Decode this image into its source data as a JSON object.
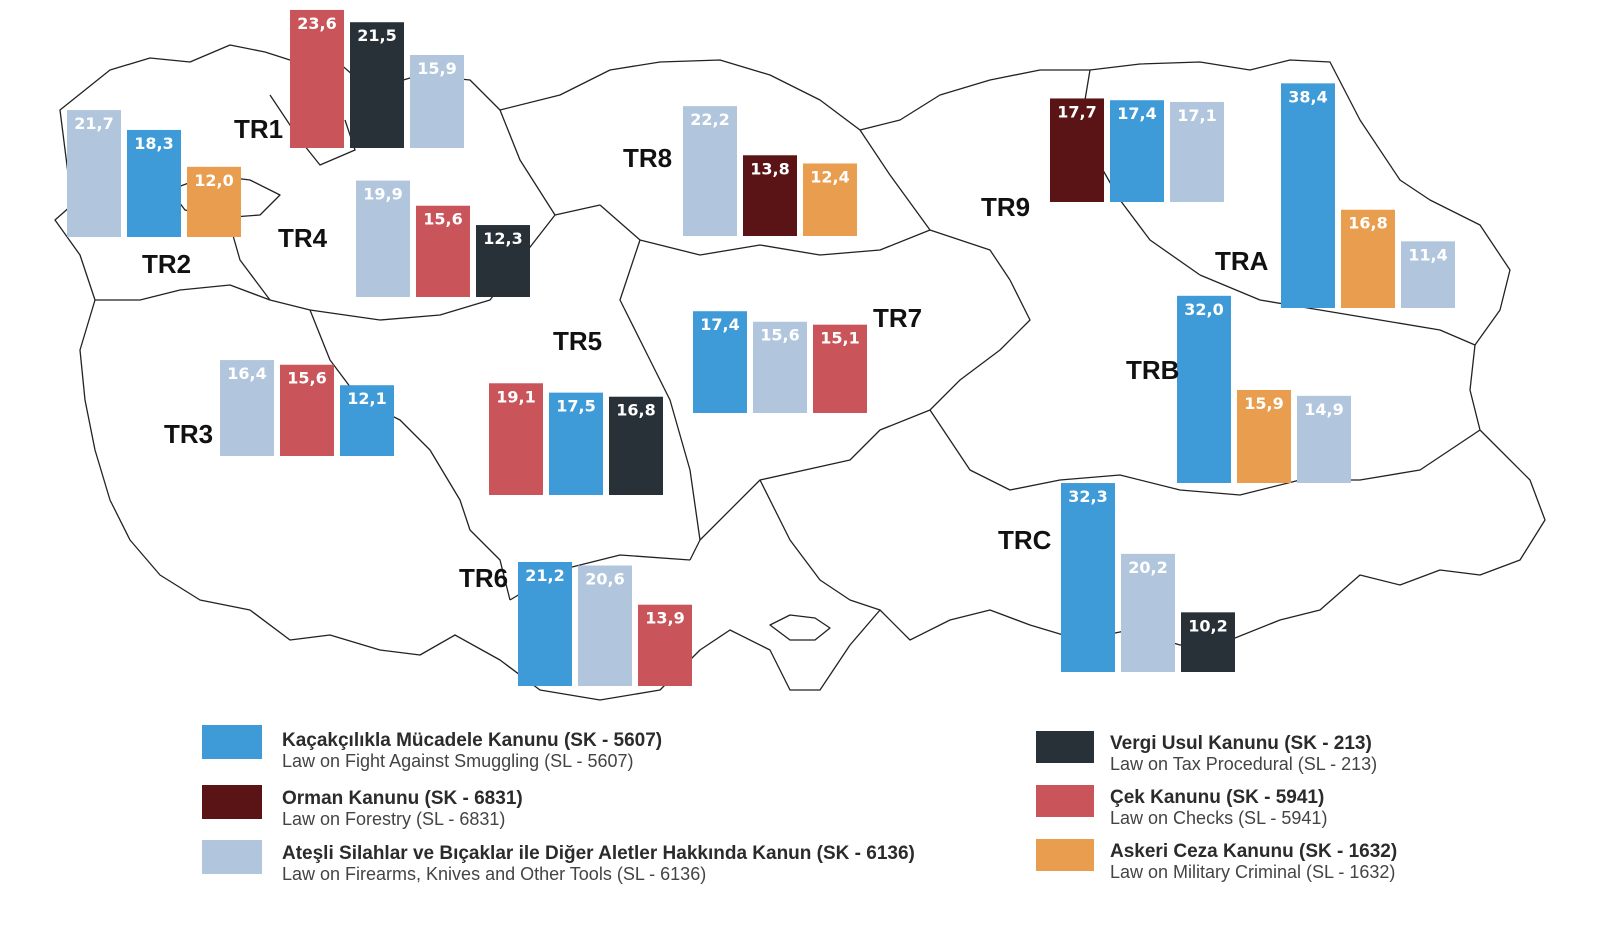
{
  "legend": [
    {
      "key": "smuggling",
      "color": "#3f9bd8",
      "title": "Kaçakçılıkla Mücadele Kanunu (SK - 5607)",
      "subtitle": "Law on Fight Against Smuggling (SL - 5607)"
    },
    {
      "key": "forestry",
      "color": "#5a1416",
      "title": "Orman Kanunu (SK - 6831)",
      "subtitle": "Law on Forestry (SL - 6831)"
    },
    {
      "key": "firearms",
      "color": "#b1c6dd",
      "title": "Ateşli Silahlar ve Bıçaklar ile Diğer Aletler Hakkında Kanun (SK - 6136)",
      "subtitle": "Law on Firearms, Knives and Other Tools (SL - 6136)"
    },
    {
      "key": "tax",
      "color": "#283038",
      "title": "Vergi Usul Kanunu (SK - 213)",
      "subtitle": "Law on Tax Procedural (SL - 213)"
    },
    {
      "key": "checks",
      "color": "#c9555a",
      "title": "Çek Kanunu (SK - 5941)",
      "subtitle": "Law on Checks (SL - 5941)"
    },
    {
      "key": "military",
      "color": "#e99d4e",
      "title": "Askeri Ceza Kanunu (SK - 1632)",
      "subtitle": "Law on Military Criminal (SL - 1632)"
    }
  ],
  "chart_data": {
    "type": "bar",
    "title": "",
    "unit": "%",
    "regions": [
      {
        "code": "TR1",
        "bars": [
          {
            "law": "checks",
            "value": 23.6,
            "label": "23,6"
          },
          {
            "law": "tax",
            "value": 21.5,
            "label": "21,5"
          },
          {
            "law": "firearms",
            "value": 15.9,
            "label": "15,9"
          }
        ]
      },
      {
        "code": "TR2",
        "bars": [
          {
            "law": "firearms",
            "value": 21.7,
            "label": "21,7"
          },
          {
            "law": "smuggling",
            "value": 18.3,
            "label": "18,3"
          },
          {
            "law": "military",
            "value": 12.0,
            "label": "12,0"
          }
        ]
      },
      {
        "code": "TR3",
        "bars": [
          {
            "law": "firearms",
            "value": 16.4,
            "label": "16,4"
          },
          {
            "law": "checks",
            "value": 15.6,
            "label": "15,6"
          },
          {
            "law": "smuggling",
            "value": 12.1,
            "label": "12,1"
          }
        ]
      },
      {
        "code": "TR4",
        "bars": [
          {
            "law": "firearms",
            "value": 19.9,
            "label": "19,9"
          },
          {
            "law": "checks",
            "value": 15.6,
            "label": "15,6"
          },
          {
            "law": "tax",
            "value": 12.3,
            "label": "12,3"
          }
        ]
      },
      {
        "code": "TR5",
        "bars": [
          {
            "law": "checks",
            "value": 19.1,
            "label": "19,1"
          },
          {
            "law": "smuggling",
            "value": 17.5,
            "label": "17,5"
          },
          {
            "law": "tax",
            "value": 16.8,
            "label": "16,8"
          }
        ]
      },
      {
        "code": "TR6",
        "bars": [
          {
            "law": "smuggling",
            "value": 21.2,
            "label": "21,2"
          },
          {
            "law": "firearms",
            "value": 20.6,
            "label": "20,6"
          },
          {
            "law": "checks",
            "value": 13.9,
            "label": "13,9"
          }
        ]
      },
      {
        "code": "TR7",
        "bars": [
          {
            "law": "smuggling",
            "value": 17.4,
            "label": "17,4"
          },
          {
            "law": "firearms",
            "value": 15.6,
            "label": "15,6"
          },
          {
            "law": "checks",
            "value": 15.1,
            "label": "15,1"
          }
        ]
      },
      {
        "code": "TR8",
        "bars": [
          {
            "law": "firearms",
            "value": 22.2,
            "label": "22,2"
          },
          {
            "law": "forestry",
            "value": 13.8,
            "label": "13,8"
          },
          {
            "law": "military",
            "value": 12.4,
            "label": "12,4"
          }
        ]
      },
      {
        "code": "TR9",
        "bars": [
          {
            "law": "forestry",
            "value": 17.7,
            "label": "17,7"
          },
          {
            "law": "smuggling",
            "value": 17.4,
            "label": "17,4"
          },
          {
            "law": "firearms",
            "value": 17.1,
            "label": "17,1"
          }
        ]
      },
      {
        "code": "TRA",
        "bars": [
          {
            "law": "smuggling",
            "value": 38.4,
            "label": "38,4"
          },
          {
            "law": "military",
            "value": 16.8,
            "label": "16,8"
          },
          {
            "law": "firearms",
            "value": 11.4,
            "label": "11,4"
          }
        ]
      },
      {
        "code": "TRB",
        "bars": [
          {
            "law": "smuggling",
            "value": 32.0,
            "label": "32,0"
          },
          {
            "law": "military",
            "value": 15.9,
            "label": "15,9"
          },
          {
            "law": "firearms",
            "value": 14.9,
            "label": "14,9"
          }
        ]
      },
      {
        "code": "TRC",
        "bars": [
          {
            "law": "smuggling",
            "value": 32.3,
            "label": "32,3"
          },
          {
            "law": "firearms",
            "value": 20.2,
            "label": "20,2"
          },
          {
            "law": "tax",
            "value": 10.2,
            "label": "10,2"
          }
        ]
      }
    ]
  }
}
